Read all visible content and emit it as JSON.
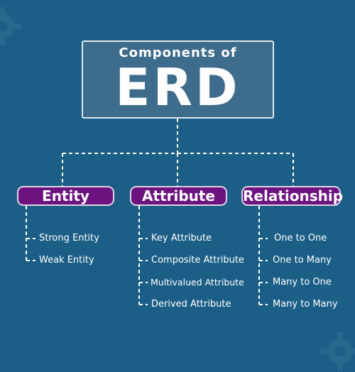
{
  "title": {
    "subtitle": "Components of",
    "main": "ERD"
  },
  "categories": [
    {
      "label": "Entity",
      "items": [
        "Strong Entity",
        "Weak Entity"
      ]
    },
    {
      "label": "Attribute",
      "items": [
        "Key Attribute",
        "Composite Attribute",
        "Multivalued Attribute",
        "Derived Attribute"
      ]
    },
    {
      "label": "Relationship",
      "items": [
        "One to One",
        "One to Many",
        "Many to One",
        "Many to Many"
      ]
    }
  ],
  "colors": {
    "background": "#1b5f86",
    "title_box": "#3e6c8c",
    "category_box": "#6d1380",
    "connector": "#ffffff"
  },
  "icons": [
    "gear-icon"
  ]
}
